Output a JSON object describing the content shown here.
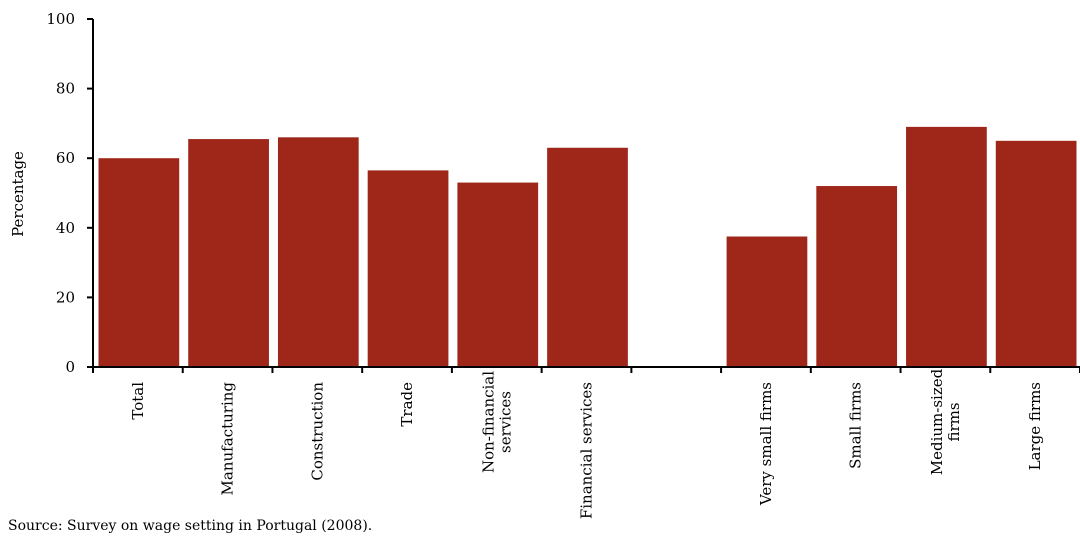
{
  "chart_data": {
    "type": "bar",
    "categories": [
      [
        "Total"
      ],
      [
        "Manufacturing"
      ],
      [
        "Construction"
      ],
      [
        "Trade"
      ],
      [
        "Non-financial",
        "services"
      ],
      [
        "Financial services"
      ],
      [
        ""
      ],
      [
        "Very small firms"
      ],
      [
        "Small firms"
      ],
      [
        "Medium-sized",
        "firms"
      ],
      [
        "Large firms"
      ]
    ],
    "values": [
      60,
      65.5,
      66,
      56.5,
      53,
      63,
      null,
      37.5,
      52,
      69,
      65
    ],
    "ylabel": "Percentage",
    "ylim": [
      0,
      100
    ],
    "yticks": [
      0,
      20,
      40,
      60,
      80,
      100
    ],
    "bar_color": "#9e271a",
    "grid": false,
    "legend": "none"
  },
  "source": "Source: Survey on wage setting in Portugal (2008)."
}
